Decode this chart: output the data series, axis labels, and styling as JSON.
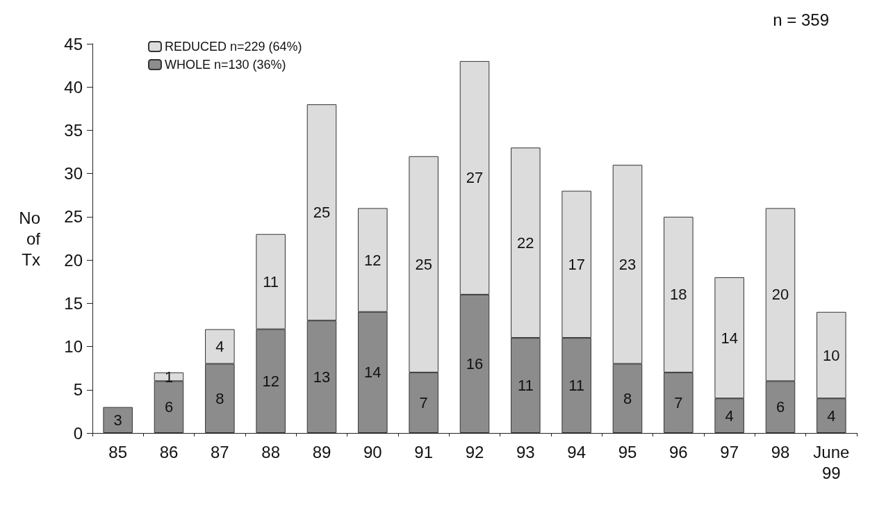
{
  "chart_data": {
    "type": "bar",
    "stacked": true,
    "categories": [
      "85",
      "86",
      "87",
      "88",
      "89",
      "90",
      "91",
      "92",
      "93",
      "94",
      "95",
      "96",
      "97",
      "98",
      "June\n99"
    ],
    "series": [
      {
        "name": "WHOLE n=130 (36%)",
        "color": "#8c8c8c",
        "values": [
          3,
          6,
          8,
          12,
          13,
          14,
          7,
          16,
          11,
          11,
          8,
          7,
          4,
          6,
          4
        ]
      },
      {
        "name": "REDUCED n=229 (64%)",
        "color": "#dcdcdc",
        "values": [
          null,
          1,
          4,
          11,
          25,
          12,
          25,
          27,
          22,
          17,
          23,
          18,
          14,
          20,
          10
        ]
      }
    ],
    "ylabel": "No\nof\nTx",
    "ylim": [
      0,
      45
    ],
    "yticks": [
      0,
      5,
      10,
      15,
      20,
      25,
      30,
      35,
      40,
      45
    ],
    "annotations": [
      "n = 359"
    ],
    "data_labels": true,
    "legend": "top left",
    "grid": false
  }
}
